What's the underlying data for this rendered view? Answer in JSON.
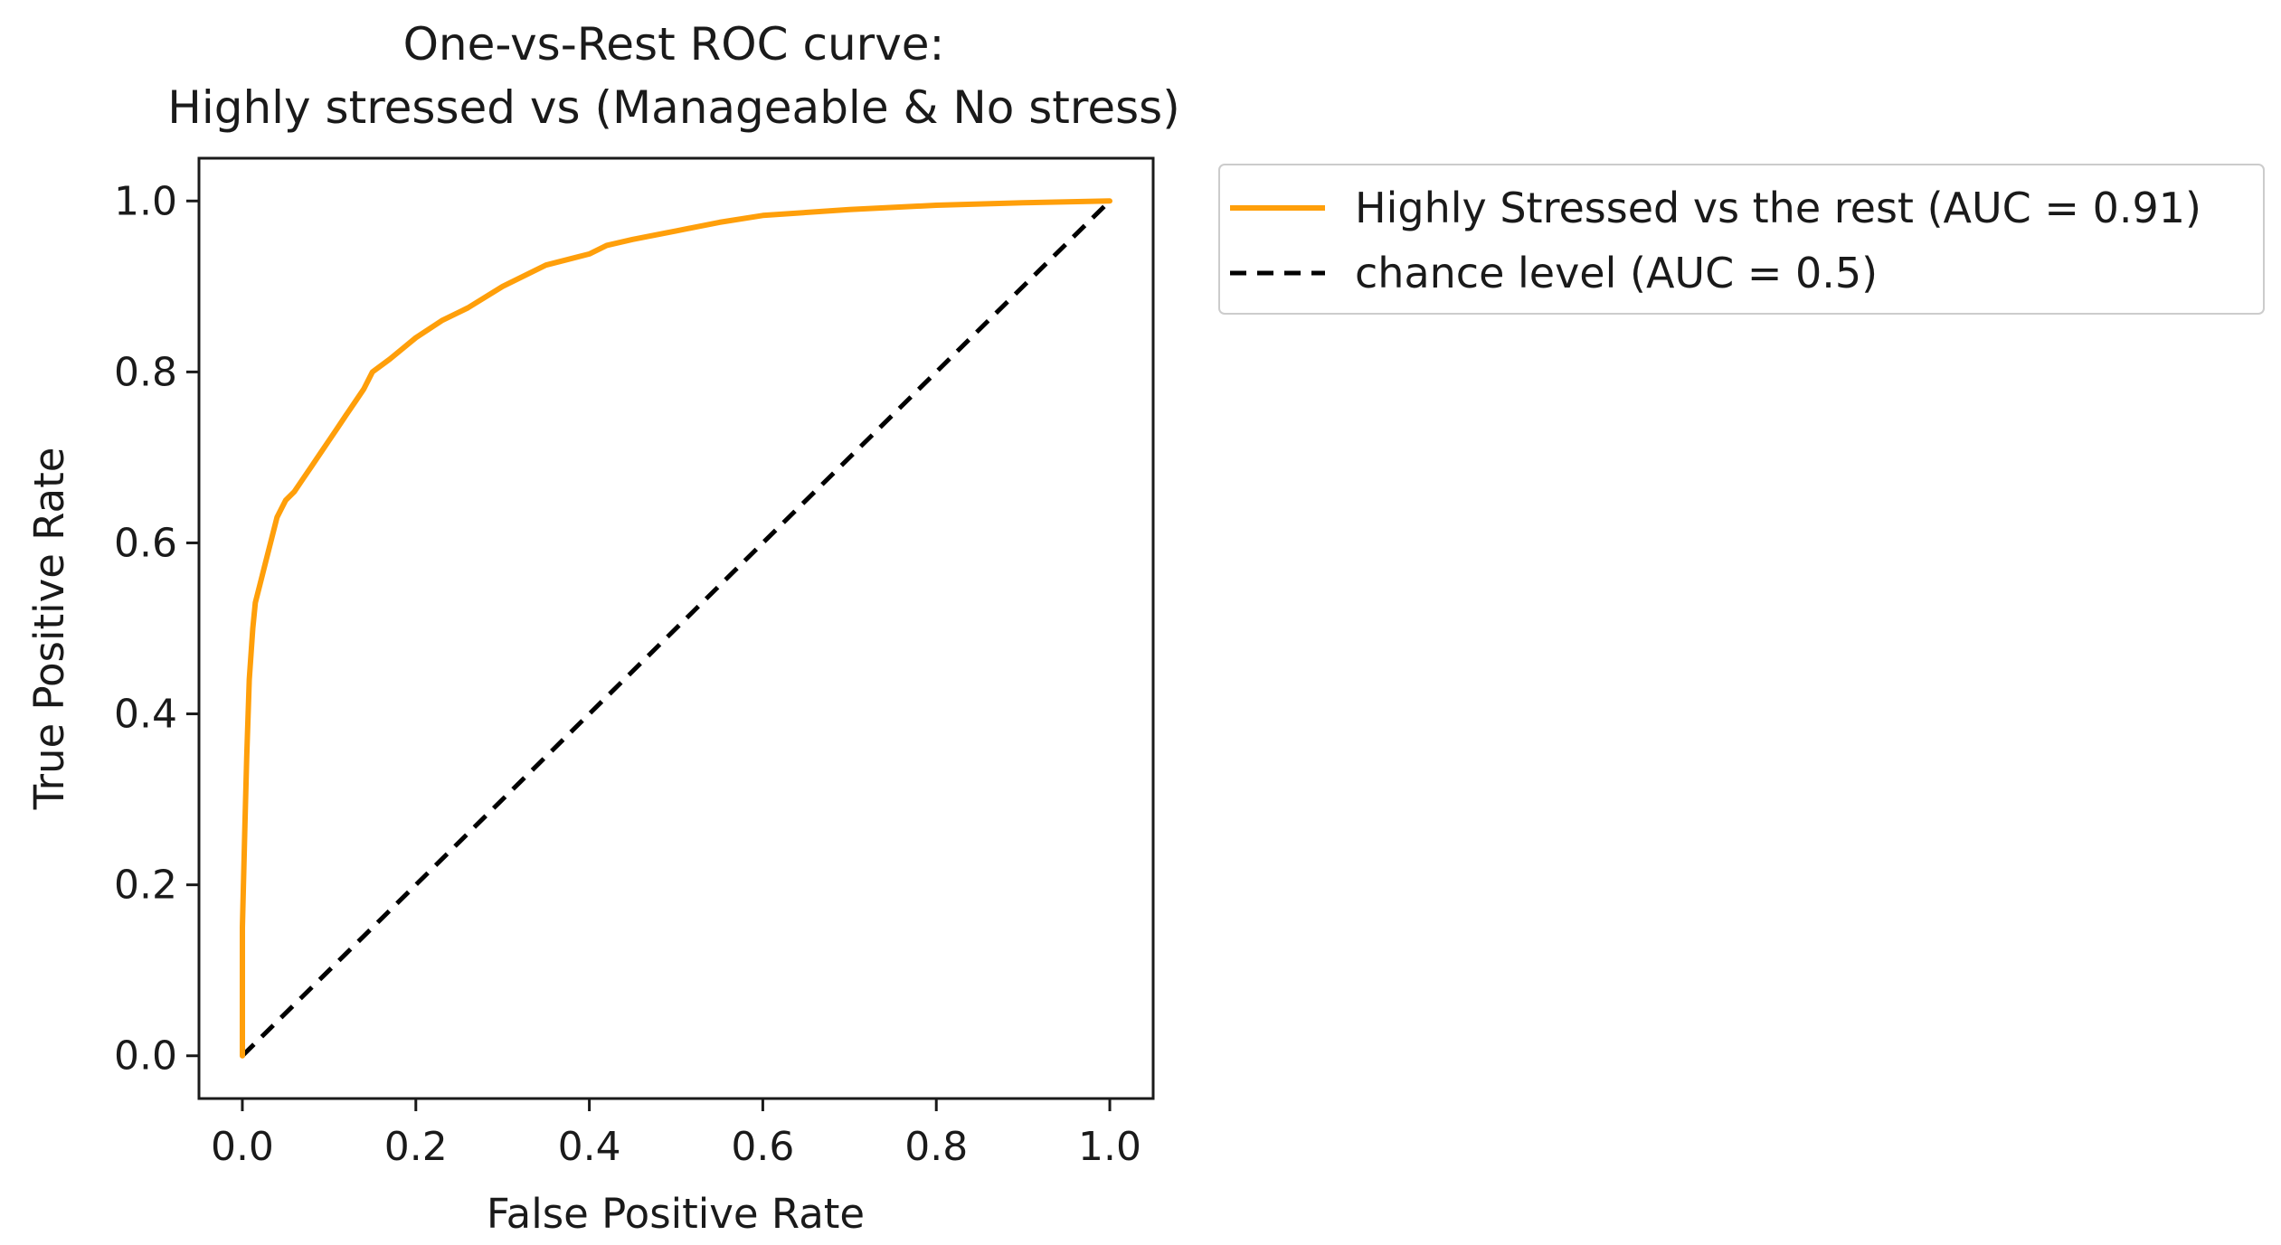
{
  "colors": {
    "roc_curve": "#FF9F0A",
    "chance_line": "#000000",
    "axes": "#1a1a1a",
    "legend_border": "#cccccc",
    "background": "#ffffff"
  },
  "chart_data": {
    "type": "line",
    "title": [
      "One-vs-Rest ROC curve:",
      "Highly stressed vs (Manageable & No stress)"
    ],
    "xlabel": "False Positive Rate",
    "ylabel": "True Positive Rate",
    "xlim": [
      -0.05,
      1.05
    ],
    "ylim": [
      -0.05,
      1.05
    ],
    "xticks": [
      0.0,
      0.2,
      0.4,
      0.6,
      0.8,
      1.0
    ],
    "xtick_labels": [
      "0.0",
      "0.2",
      "0.4",
      "0.6",
      "0.8",
      "1.0"
    ],
    "yticks": [
      0.0,
      0.2,
      0.4,
      0.6,
      0.8,
      1.0
    ],
    "ytick_labels": [
      "0.0",
      "0.2",
      "0.4",
      "0.6",
      "0.8",
      "1.0"
    ],
    "grid": false,
    "legend_position": "outside-top-right",
    "series": [
      {
        "name": "Highly Stressed vs the rest (AUC = 0.91)",
        "style": "solid",
        "color_key": "roc_curve",
        "x": [
          0.0,
          0.0,
          0.003,
          0.005,
          0.008,
          0.012,
          0.015,
          0.02,
          0.025,
          0.03,
          0.035,
          0.04,
          0.045,
          0.05,
          0.06,
          0.07,
          0.08,
          0.09,
          0.1,
          0.11,
          0.12,
          0.13,
          0.14,
          0.15,
          0.17,
          0.2,
          0.23,
          0.26,
          0.3,
          0.35,
          0.4,
          0.42,
          0.45,
          0.5,
          0.55,
          0.6,
          0.7,
          0.8,
          0.9,
          1.0
        ],
        "y": [
          0.0,
          0.15,
          0.27,
          0.35,
          0.44,
          0.5,
          0.53,
          0.55,
          0.57,
          0.59,
          0.61,
          0.63,
          0.64,
          0.65,
          0.66,
          0.675,
          0.69,
          0.705,
          0.72,
          0.735,
          0.75,
          0.765,
          0.78,
          0.8,
          0.815,
          0.84,
          0.86,
          0.875,
          0.9,
          0.925,
          0.938,
          0.948,
          0.955,
          0.965,
          0.975,
          0.983,
          0.99,
          0.995,
          0.998,
          1.0
        ]
      },
      {
        "name": "chance level (AUC = 0.5)",
        "style": "dashed",
        "color_key": "chance_line",
        "x": [
          0.0,
          1.0
        ],
        "y": [
          0.0,
          1.0
        ]
      }
    ]
  }
}
